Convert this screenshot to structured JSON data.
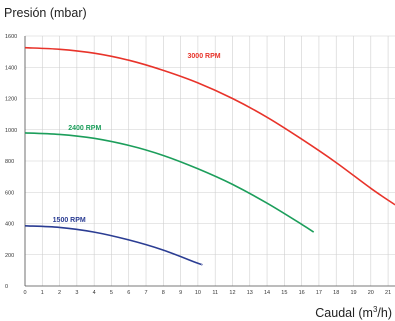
{
  "chart_data": {
    "type": "line",
    "ylabel": "Presión (mbar)",
    "xlabel_main": "Caudal (m",
    "xlabel_sup": "3",
    "xlabel_tail": "/h)",
    "xlim": [
      0,
      21.4
    ],
    "ylim": [
      0,
      1600
    ],
    "x_ticks": [
      0,
      1,
      2,
      3,
      4,
      5,
      6,
      7,
      8,
      9,
      10,
      11,
      12,
      13,
      14,
      15,
      16,
      17,
      18,
      19,
      20,
      21
    ],
    "y_ticks": [
      0,
      200,
      400,
      600,
      800,
      1000,
      1200,
      1400,
      1600
    ],
    "grid": true,
    "series": [
      {
        "name": "3000 RPM",
        "color": "#e8332a",
        "label_at": [
          9.4,
          1460
        ],
        "x": [
          0,
          2,
          4,
          6,
          8,
          10,
          12,
          14,
          16,
          18,
          20,
          21.4
        ],
        "y": [
          1525,
          1515,
          1490,
          1445,
          1380,
          1300,
          1200,
          1080,
          940,
          790,
          625,
          520
        ]
      },
      {
        "name": "2400 RPM",
        "color": "#1c9e5b",
        "label_at": [
          2.5,
          1000
        ],
        "x": [
          0,
          2,
          4,
          6,
          8,
          10,
          12,
          14,
          16,
          16.7
        ],
        "y": [
          980,
          970,
          945,
          900,
          835,
          750,
          650,
          530,
          395,
          345
        ]
      },
      {
        "name": "1500 RPM",
        "color": "#2b3d93",
        "label_at": [
          1.6,
          410
        ],
        "x": [
          0,
          2,
          4,
          6,
          8,
          10,
          10.2
        ],
        "y": [
          385,
          375,
          345,
          295,
          230,
          145,
          140
        ]
      }
    ]
  }
}
